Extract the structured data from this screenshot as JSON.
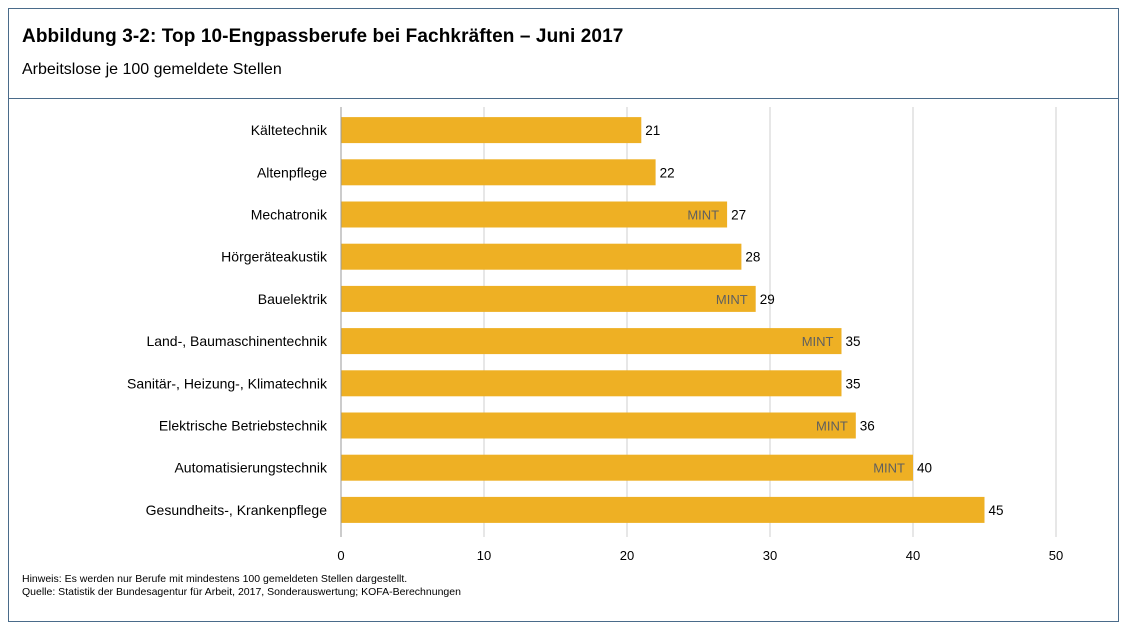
{
  "title": "Abbildung 3-2: Top 10-Engpassberufe bei Fachkräften – Juni 2017",
  "subtitle": "Arbeitslose je 100 gemeldete Stellen",
  "notes": {
    "hint": "Hinweis: Es werden nur Berufe mit mindestens 100 gemeldeten Stellen dargestellt.",
    "source": "Quelle: Statistik der Bundesagentur für Arbeit, 2017, Sonderauswertung; KOFA-Berechnungen"
  },
  "colors": {
    "bar": "#EEB024",
    "grid": "#cfcfcf",
    "frame": "#4a6b8a",
    "mint_text": "#5f5f5f"
  },
  "chart_data": {
    "type": "bar",
    "orientation": "horizontal",
    "title": "Abbildung 3-2: Top 10-Engpassberufe bei Fachkräften – Juni 2017",
    "subtitle": "Arbeitslose je 100 gemeldete Stellen",
    "xlabel": "",
    "ylabel": "",
    "xlim": [
      0,
      50
    ],
    "xticks": [
      0,
      10,
      20,
      30,
      40,
      50
    ],
    "grid": true,
    "categories": [
      "Kältetechnik",
      "Altenpflege",
      "Mechatronik",
      "Hörgeräteakustik",
      "Bauelektrik",
      "Land-, Baumaschinentechnik",
      "Sanitär-, Heizung-, Klimatechnik",
      "Elektrische Betriebstechnik",
      "Automatisierungstechnik",
      "Gesundheits-, Krankenpflege"
    ],
    "values": [
      21,
      22,
      27,
      28,
      29,
      35,
      35,
      36,
      40,
      45
    ],
    "inner_labels": [
      "",
      "",
      "MINT",
      "",
      "MINT",
      "MINT",
      "",
      "MINT",
      "MINT",
      ""
    ]
  }
}
